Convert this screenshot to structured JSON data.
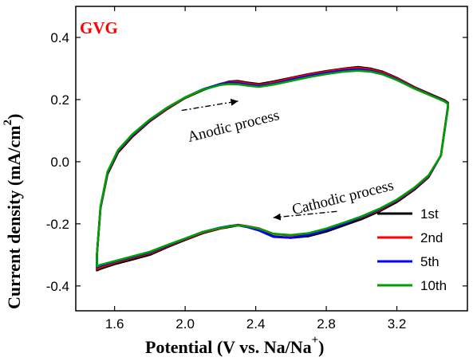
{
  "chart_data": {
    "type": "line",
    "panel_label": "GVG",
    "panel_label_color": "#ff0000",
    "xlabel": "Potential (V vs. Na/Na",
    "xlabel_sup": "+",
    "xlabel_end": ")",
    "ylabel": "Current density (mA/cm",
    "ylabel_sup": "2",
    "ylabel_end": ")",
    "xlim": [
      1.38,
      3.6
    ],
    "ylim": [
      -0.48,
      0.5
    ],
    "x_ticks": [
      "1.6",
      "2.0",
      "2.4",
      "2.8",
      "3.2"
    ],
    "y_ticks": [
      "-0.4",
      "-0.2",
      "0.0",
      "0.2",
      "0.4"
    ],
    "legend_position": "bottom-right",
    "annotations": [
      {
        "text": "Anodic process",
        "x": 2.28,
        "y": 0.1,
        "rotation": -14
      },
      {
        "text": "Cathodic process",
        "x": 2.9,
        "y": -0.13,
        "rotation": -14
      }
    ],
    "arrows": [
      {
        "from": [
          1.98,
          0.165
        ],
        "to": [
          2.3,
          0.195
        ]
      },
      {
        "from": [
          2.86,
          -0.16
        ],
        "to": [
          2.5,
          -0.18
        ]
      }
    ],
    "series": [
      {
        "name": "1st",
        "color": "#000000",
        "x": [
          1.5,
          1.52,
          1.56,
          1.62,
          1.7,
          1.8,
          1.9,
          2.0,
          2.1,
          2.2,
          2.25,
          2.3,
          2.35,
          2.42,
          2.5,
          2.6,
          2.7,
          2.8,
          2.9,
          2.98,
          3.05,
          3.12,
          3.2,
          3.3,
          3.4,
          3.47,
          3.49,
          3.49,
          3.45,
          3.38,
          3.3,
          3.2,
          3.1,
          3.0,
          2.9,
          2.8,
          2.7,
          2.6,
          2.5,
          2.42,
          2.35,
          2.3,
          2.25,
          2.2,
          2.1,
          2.0,
          1.9,
          1.8,
          1.7,
          1.6,
          1.52,
          1.5,
          1.5
        ],
        "y": [
          -0.3,
          -0.15,
          -0.04,
          0.03,
          0.08,
          0.13,
          0.17,
          0.205,
          0.23,
          0.25,
          0.258,
          0.26,
          0.255,
          0.25,
          0.258,
          0.27,
          0.282,
          0.292,
          0.3,
          0.305,
          0.3,
          0.29,
          0.27,
          0.24,
          0.215,
          0.198,
          0.19,
          0.18,
          0.02,
          -0.05,
          -0.09,
          -0.13,
          -0.16,
          -0.185,
          -0.205,
          -0.225,
          -0.24,
          -0.245,
          -0.24,
          -0.22,
          -0.21,
          -0.205,
          -0.21,
          -0.215,
          -0.23,
          -0.252,
          -0.275,
          -0.3,
          -0.315,
          -0.33,
          -0.345,
          -0.35,
          -0.3
        ]
      },
      {
        "name": "2nd",
        "color": "#ff0000",
        "x": [
          1.5,
          1.52,
          1.56,
          1.62,
          1.7,
          1.8,
          1.9,
          2.0,
          2.1,
          2.2,
          2.25,
          2.3,
          2.35,
          2.42,
          2.5,
          2.6,
          2.7,
          2.8,
          2.9,
          2.98,
          3.05,
          3.12,
          3.2,
          3.3,
          3.4,
          3.47,
          3.49,
          3.49,
          3.45,
          3.38,
          3.3,
          3.2,
          3.1,
          3.0,
          2.9,
          2.8,
          2.7,
          2.6,
          2.5,
          2.42,
          2.35,
          2.3,
          2.25,
          2.2,
          2.1,
          2.0,
          1.9,
          1.8,
          1.7,
          1.6,
          1.52,
          1.5,
          1.5
        ],
        "y": [
          -0.3,
          -0.148,
          -0.036,
          0.034,
          0.084,
          0.132,
          0.172,
          0.206,
          0.232,
          0.251,
          0.256,
          0.257,
          0.252,
          0.247,
          0.255,
          0.268,
          0.28,
          0.29,
          0.298,
          0.302,
          0.297,
          0.287,
          0.268,
          0.238,
          0.213,
          0.196,
          0.188,
          0.178,
          0.02,
          -0.048,
          -0.087,
          -0.126,
          -0.156,
          -0.18,
          -0.198,
          -0.217,
          -0.232,
          -0.238,
          -0.232,
          -0.215,
          -0.207,
          -0.203,
          -0.208,
          -0.214,
          -0.228,
          -0.25,
          -0.272,
          -0.295,
          -0.31,
          -0.325,
          -0.34,
          -0.345,
          -0.3
        ]
      },
      {
        "name": "5th",
        "color": "#0000ff",
        "x": [
          1.5,
          1.52,
          1.56,
          1.62,
          1.7,
          1.8,
          1.9,
          2.0,
          2.1,
          2.2,
          2.25,
          2.3,
          2.35,
          2.42,
          2.5,
          2.6,
          2.7,
          2.8,
          2.9,
          2.98,
          3.05,
          3.12,
          3.2,
          3.3,
          3.4,
          3.47,
          3.49,
          3.49,
          3.45,
          3.38,
          3.3,
          3.2,
          3.1,
          3.0,
          2.9,
          2.8,
          2.7,
          2.6,
          2.5,
          2.42,
          2.35,
          2.3,
          2.25,
          2.2,
          2.1,
          2.0,
          1.9,
          1.8,
          1.7,
          1.6,
          1.52,
          1.5,
          1.5
        ],
        "y": [
          -0.3,
          -0.146,
          -0.034,
          0.036,
          0.086,
          0.134,
          0.174,
          0.207,
          0.233,
          0.25,
          0.254,
          0.253,
          0.248,
          0.244,
          0.251,
          0.264,
          0.276,
          0.286,
          0.294,
          0.297,
          0.293,
          0.283,
          0.265,
          0.236,
          0.212,
          0.195,
          0.187,
          0.176,
          0.02,
          -0.046,
          -0.085,
          -0.124,
          -0.154,
          -0.178,
          -0.2,
          -0.22,
          -0.236,
          -0.245,
          -0.242,
          -0.222,
          -0.21,
          -0.204,
          -0.207,
          -0.212,
          -0.226,
          -0.248,
          -0.27,
          -0.292,
          -0.307,
          -0.322,
          -0.335,
          -0.34,
          -0.3
        ]
      },
      {
        "name": "10th",
        "color": "#00a000",
        "x": [
          1.5,
          1.52,
          1.56,
          1.62,
          1.7,
          1.8,
          1.9,
          2.0,
          2.1,
          2.2,
          2.25,
          2.3,
          2.35,
          2.42,
          2.5,
          2.6,
          2.7,
          2.8,
          2.9,
          2.98,
          3.05,
          3.12,
          3.2,
          3.3,
          3.4,
          3.47,
          3.49,
          3.49,
          3.45,
          3.38,
          3.3,
          3.2,
          3.1,
          3.0,
          2.9,
          2.8,
          2.7,
          2.6,
          2.5,
          2.42,
          2.35,
          2.3,
          2.25,
          2.2,
          2.1,
          2.0,
          1.9,
          1.8,
          1.7,
          1.6,
          1.52,
          1.5,
          1.5
        ],
        "y": [
          -0.3,
          -0.144,
          -0.032,
          0.038,
          0.088,
          0.136,
          0.175,
          0.207,
          0.232,
          0.247,
          0.25,
          0.249,
          0.245,
          0.241,
          0.248,
          0.26,
          0.272,
          0.282,
          0.29,
          0.293,
          0.29,
          0.281,
          0.263,
          0.235,
          0.211,
          0.194,
          0.186,
          0.175,
          0.02,
          -0.044,
          -0.083,
          -0.122,
          -0.152,
          -0.176,
          -0.196,
          -0.215,
          -0.23,
          -0.236,
          -0.232,
          -0.216,
          -0.208,
          -0.205,
          -0.208,
          -0.213,
          -0.226,
          -0.247,
          -0.268,
          -0.29,
          -0.305,
          -0.32,
          -0.332,
          -0.337,
          -0.3
        ]
      }
    ]
  }
}
